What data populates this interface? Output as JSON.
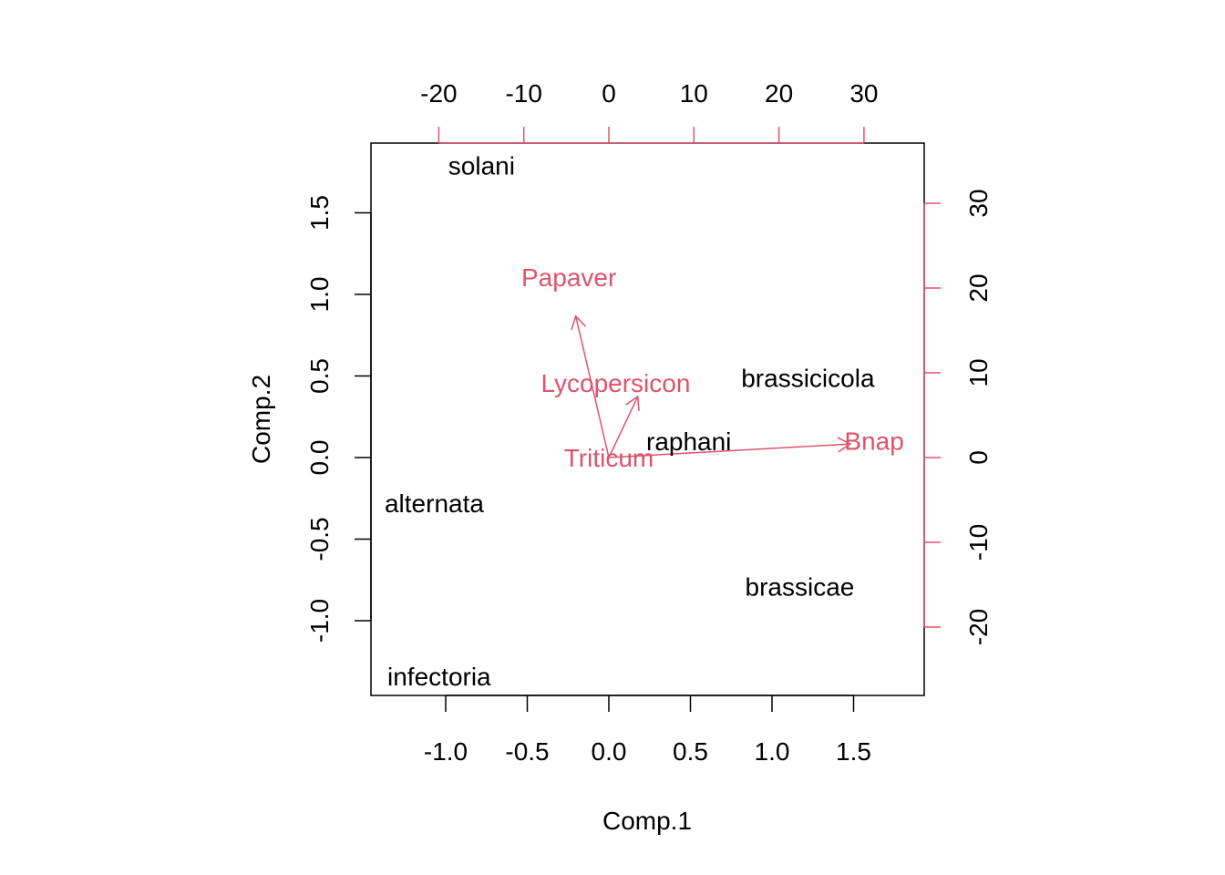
{
  "chart_data": {
    "type": "scatter",
    "subtype": "biplot",
    "title": "",
    "xlabel": "Comp.1",
    "ylabel": "Comp.2",
    "xlim": [
      -1.44,
      1.94
    ],
    "ylim": [
      -1.46,
      1.89
    ],
    "primary_x_ticks": [
      "-1.0",
      "-0.5",
      "0.0",
      "0.5",
      "1.0",
      "1.5"
    ],
    "primary_y_ticks": [
      "-1.0",
      "-0.5",
      "0.0",
      "0.5",
      "1.0",
      "1.5"
    ],
    "secondary_x_ticks": [
      "-20",
      "-10",
      "0",
      "10",
      "20",
      "30"
    ],
    "secondary_y_ticks": [
      "-20",
      "-10",
      "0",
      "10",
      "20",
      "30"
    ],
    "points": [
      {
        "label": "solani",
        "x": -0.78,
        "y": 1.79
      },
      {
        "label": "brassicicola",
        "x": 1.22,
        "y": 0.49
      },
      {
        "label": "raphani",
        "x": 0.49,
        "y": 0.1
      },
      {
        "label": "alternata",
        "x": -1.07,
        "y": -0.28
      },
      {
        "label": "brassicae",
        "x": 1.17,
        "y": -0.79
      },
      {
        "label": "infectoria",
        "x": -1.04,
        "y": -1.34
      }
    ],
    "loadings": [
      {
        "label": "Papaver",
        "x": -3.9,
        "y": 16.7,
        "label_x": -4.7,
        "label_y": 21.3
      },
      {
        "label": "Lycopersicon",
        "x": 3.4,
        "y": 7.2,
        "label_x": 0.8,
        "label_y": 8.8
      },
      {
        "label": "Triticum",
        "x": 0,
        "y": 0,
        "label_x": 0,
        "label_y": 0
      },
      {
        "label": "Bnap",
        "x": 28.4,
        "y": 1.6,
        "label_x": 31.2,
        "label_y": 2.0
      }
    ],
    "colors": {
      "points": "#000000",
      "loadings": "#DF536B",
      "axes": "#000000"
    }
  }
}
